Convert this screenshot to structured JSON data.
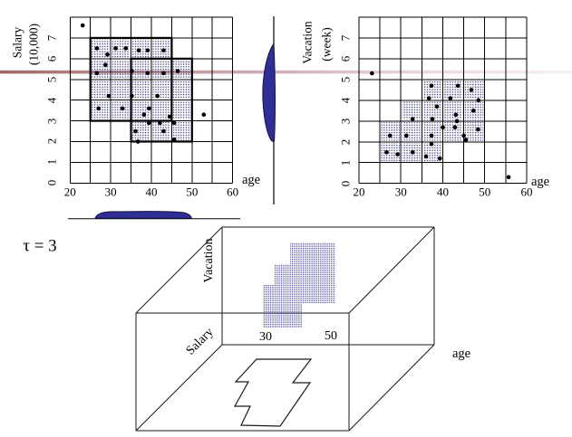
{
  "tau_label": "τ = 3",
  "colors": {
    "grid": "#000000",
    "dense_dot": "#3d3d7d",
    "cube_dot": "#4545a0",
    "blob_fill": "#2e2e96",
    "blob_stroke": "#14143c",
    "band_start": "#8f5555",
    "band_mid": "#c9a2a8",
    "band_end": "#f7f0f3",
    "point": "#000000"
  },
  "chart_data": [
    {
      "id": "salary-vs-age",
      "type": "scatter",
      "title1": "Salary",
      "title2": "(10,000)",
      "xlabel": "age",
      "x_range": [
        20,
        60
      ],
      "y_range": [
        0,
        8
      ],
      "x_ticks": [
        20,
        30,
        40,
        50,
        60
      ],
      "y_ticks": [
        0,
        1,
        2,
        3,
        4,
        5,
        6,
        7
      ],
      "grid": true,
      "dense_rects": [
        [
          25,
          45,
          3,
          7
        ],
        [
          35,
          50,
          2,
          6
        ]
      ],
      "shaded_rows": [
        [
          6,
          7,
          25,
          45
        ],
        [
          5,
          6,
          25,
          50
        ],
        [
          4,
          5,
          25,
          50
        ],
        [
          3,
          4,
          25,
          50
        ],
        [
          2,
          3,
          35,
          50
        ]
      ],
      "points": [
        [
          23.1,
          7.6
        ],
        [
          26.6,
          6.5
        ],
        [
          29.2,
          6.2
        ],
        [
          31.2,
          6.5
        ],
        [
          33.7,
          6.5
        ],
        [
          36.9,
          6.4
        ],
        [
          39.1,
          6.4
        ],
        [
          43.0,
          6.4
        ],
        [
          28.7,
          5.7
        ],
        [
          26.6,
          5.3
        ],
        [
          35.2,
          5.4
        ],
        [
          39.1,
          5.3
        ],
        [
          43.0,
          5.3
        ],
        [
          46.5,
          5.4
        ],
        [
          29.5,
          4.2
        ],
        [
          35.2,
          4.2
        ],
        [
          41.5,
          4.2
        ],
        [
          27.0,
          3.6
        ],
        [
          32.9,
          3.6
        ],
        [
          38.2,
          3.3
        ],
        [
          39.4,
          3.6
        ],
        [
          42.1,
          2.9
        ],
        [
          44.5,
          3.2
        ],
        [
          52.9,
          3.3
        ],
        [
          36.1,
          2.5
        ],
        [
          39.4,
          2.9
        ],
        [
          43.0,
          2.5
        ],
        [
          45.6,
          2.9
        ],
        [
          36.7,
          2.0
        ],
        [
          45.6,
          2.1
        ]
      ]
    },
    {
      "id": "vacation-vs-age",
      "type": "scatter",
      "title1": "Vacation",
      "title2": "(week)",
      "xlabel": "age",
      "x_range": [
        20,
        60
      ],
      "y_range": [
        0,
        8
      ],
      "x_ticks": [
        20,
        30,
        40,
        50,
        60
      ],
      "y_ticks": [
        0,
        1,
        2,
        3,
        4,
        5,
        6,
        7
      ],
      "grid": true,
      "dense_rects": [],
      "shaded_rows": [
        [
          4,
          5,
          35,
          50
        ],
        [
          3,
          4,
          30,
          50
        ],
        [
          2,
          3,
          25,
          50
        ],
        [
          1,
          2,
          25,
          40
        ]
      ],
      "points": [
        [
          23.1,
          5.3
        ],
        [
          37.3,
          4.7
        ],
        [
          43.6,
          4.7
        ],
        [
          46.8,
          4.5
        ],
        [
          36.7,
          4.1
        ],
        [
          41.8,
          4.1
        ],
        [
          48.5,
          4.0
        ],
        [
          38.6,
          3.7
        ],
        [
          47.3,
          3.5
        ],
        [
          43.1,
          3.3
        ],
        [
          32.8,
          3.1
        ],
        [
          37.5,
          3.1
        ],
        [
          43.4,
          3.0
        ],
        [
          40.0,
          2.7
        ],
        [
          42.9,
          2.7
        ],
        [
          48.4,
          2.6
        ],
        [
          27.4,
          2.3
        ],
        [
          31.3,
          2.3
        ],
        [
          37.3,
          2.3
        ],
        [
          45.0,
          2.3
        ],
        [
          45.5,
          2.1
        ],
        [
          37.3,
          1.9
        ],
        [
          26.6,
          1.5
        ],
        [
          29.2,
          1.4
        ],
        [
          32.8,
          1.5
        ],
        [
          36.0,
          1.3
        ],
        [
          39.3,
          1.2
        ],
        [
          55.7,
          0.3
        ]
      ]
    }
  ],
  "projections": {
    "salary_axis_dense_interval": [
      2.1,
      6.7
    ],
    "age_axis_dense_interval": [
      26.5,
      50
    ]
  },
  "cube": {
    "vacation_label": "Vacation",
    "salary_label": "Salary",
    "age_label": "age",
    "tick_30": "30",
    "tick_50": "50"
  }
}
